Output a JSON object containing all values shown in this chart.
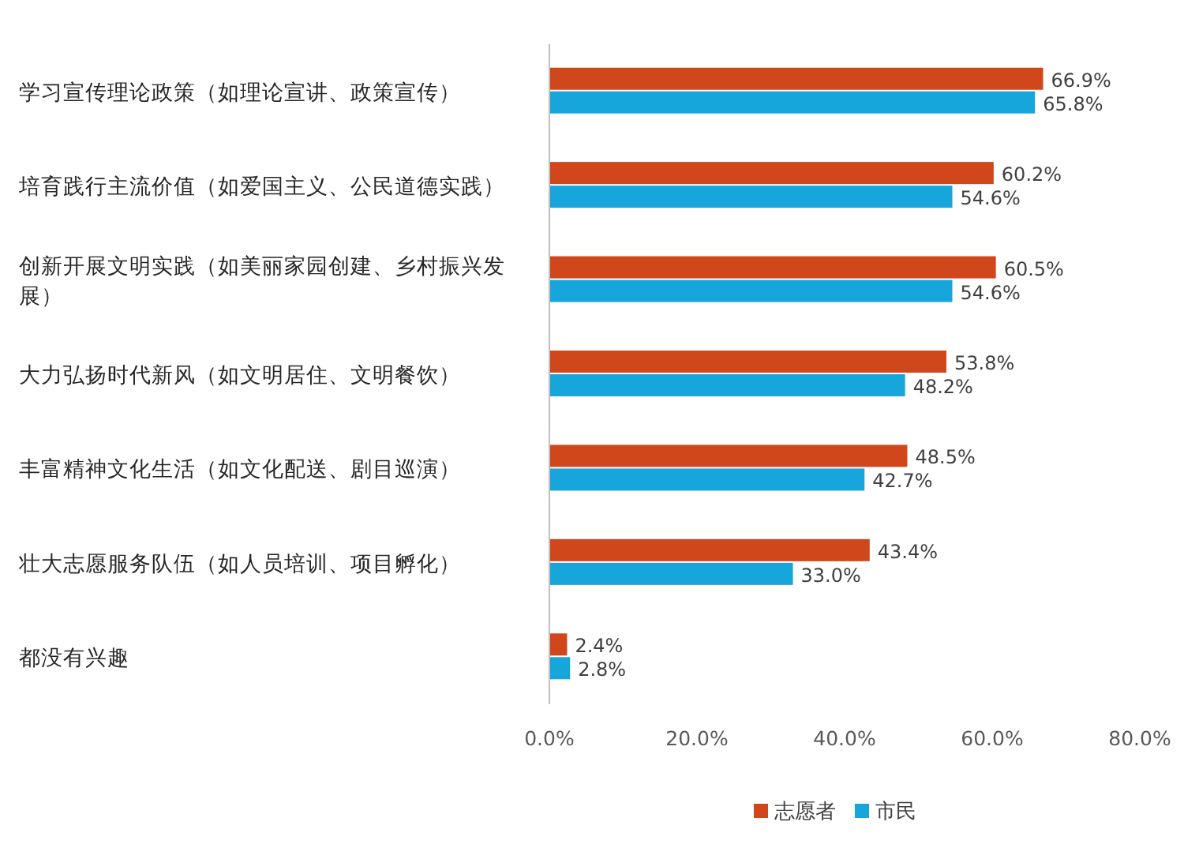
{
  "chart_data": {
    "type": "bar",
    "orientation": "horizontal",
    "categories": [
      "学习宣传理论政策（如理论宣讲、政策宣传）",
      "培育践行主流价值（如爱国主义、公民道德实践）",
      "创新开展文明实践（如美丽家园创建、乡村振兴发展）",
      "大力弘扬时代新风（如文明居住、文明餐饮）",
      "丰富精神文化生活（如文化配送、剧目巡演）",
      "壮大志愿服务队伍（如人员培训、项目孵化）",
      "都没有兴趣"
    ],
    "series": [
      {
        "name": "志愿者",
        "color": "#d0471c",
        "values": [
          66.9,
          60.2,
          60.5,
          53.8,
          48.5,
          43.4,
          2.4
        ],
        "value_labels": [
          "66.9%",
          "60.2%",
          "60.5%",
          "53.8%",
          "48.5%",
          "43.4%",
          "2.4%"
        ]
      },
      {
        "name": "市民",
        "color": "#16a6dc",
        "values": [
          65.8,
          54.6,
          54.6,
          48.2,
          42.7,
          33.0,
          2.8
        ],
        "value_labels": [
          "65.8%",
          "54.6%",
          "54.6%",
          "48.2%",
          "42.7%",
          "33.0%",
          "2.8%"
        ]
      }
    ],
    "xlim": [
      0,
      80
    ],
    "xticks": [
      {
        "value": 0,
        "label": "0.0%"
      },
      {
        "value": 20,
        "label": "20.0%"
      },
      {
        "value": 40,
        "label": "40.0%"
      },
      {
        "value": 60,
        "label": "60.0%"
      },
      {
        "value": 80,
        "label": "80.0%"
      }
    ],
    "grid": false,
    "legend": "bottom"
  }
}
